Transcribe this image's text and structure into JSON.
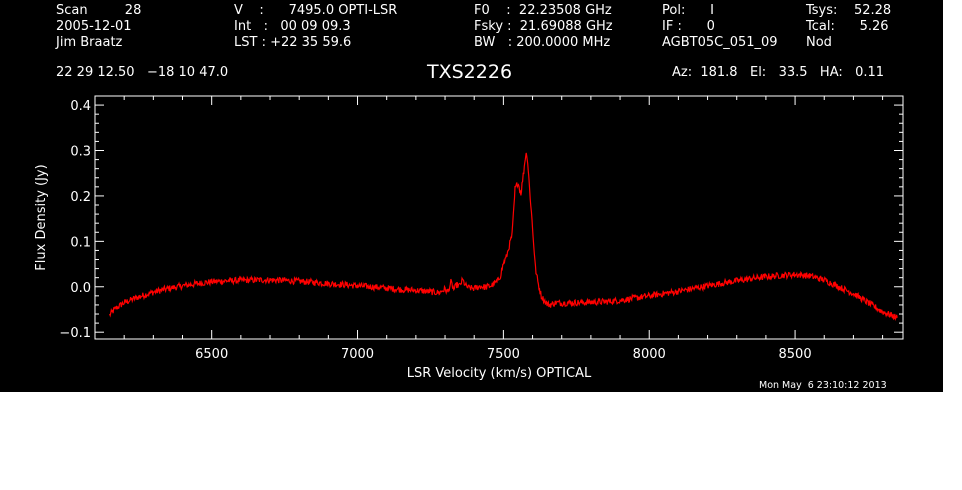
{
  "header": {
    "col1": [
      "Scan         28",
      "2005-12-01",
      "Jim Braatz"
    ],
    "col2": [
      "V    :      7495.0 OPTI-LSR",
      "Int   :   00 09 09.3",
      "LST : +22 35 59.6"
    ],
    "col3": [
      "F0    :  22.23508 GHz",
      "Fsky :  21.69088 GHz",
      "BW   : 200.0000 MHz"
    ],
    "col4": [
      "Pol:      I",
      "IF :      0",
      "AGBT05C_051_09"
    ],
    "col5": [
      "Tsys:    52.28",
      "Tcal:      5.26",
      "Nod"
    ],
    "coords": "22 29 12.50   −18 10 47.0",
    "source": "TXS2226",
    "pointing": "Az:  181.8   El:   33.5   HA:   0.11",
    "timestamp": "Mon May  6 23:10:12 2013"
  },
  "colors": {
    "background": "#000000",
    "axes": "#ffffff",
    "trace": "#ff0000"
  },
  "chart_data": {
    "type": "line",
    "title": "TXS2226",
    "xlabel": "LSR Velocity (km/s) OPTICAL",
    "ylabel": "Flux Density (Jy)",
    "xlim": [
      6100,
      8870
    ],
    "ylim": [
      -0.115,
      0.42
    ],
    "xticks": [
      6500,
      7000,
      7500,
      8000,
      8500
    ],
    "yticks": [
      -0.1,
      0.0,
      0.1,
      0.2,
      0.3,
      0.4
    ],
    "ytick_labels": [
      "−0.1",
      "0.0",
      "0.1",
      "0.2",
      "0.3",
      "0.4"
    ],
    "grid": false,
    "legend": "none",
    "series": [
      {
        "x": [
          6150,
          6170,
          6200,
          6250,
          6300,
          6350,
          6400,
          6450,
          6500,
          6550,
          6600,
          6650,
          6700,
          6750,
          6800,
          6850,
          6900,
          6950,
          7000,
          7050,
          7100,
          7150,
          7200,
          7250,
          7280,
          7300,
          7310,
          7320,
          7330,
          7340,
          7350,
          7360,
          7370,
          7380,
          7400,
          7420,
          7440,
          7460,
          7480,
          7490,
          7500,
          7510,
          7520,
          7530,
          7540,
          7550,
          7560,
          7570,
          7575,
          7580,
          7585,
          7590,
          7600,
          7610,
          7620,
          7630,
          7640,
          7650,
          7660,
          7680,
          7700,
          7750,
          7800,
          7850,
          7900,
          7950,
          8000,
          8050,
          8100,
          8150,
          8200,
          8250,
          8300,
          8350,
          8400,
          8450,
          8500,
          8550,
          8600,
          8650,
          8700,
          8750,
          8800,
          8850
        ],
        "y": [
          -0.062,
          -0.048,
          -0.035,
          -0.022,
          -0.012,
          -0.004,
          0.002,
          0.007,
          0.011,
          0.013,
          0.014,
          0.015,
          0.015,
          0.014,
          0.012,
          0.01,
          0.007,
          0.005,
          0.002,
          0.0,
          -0.003,
          -0.006,
          -0.008,
          -0.011,
          -0.013,
          -0.005,
          -0.012,
          0.01,
          -0.006,
          0.004,
          0.002,
          0.015,
          0.003,
          -0.002,
          -0.004,
          0.001,
          -0.001,
          0.003,
          0.012,
          0.025,
          0.052,
          0.065,
          0.09,
          0.115,
          0.215,
          0.23,
          0.205,
          0.255,
          0.285,
          0.295,
          0.26,
          0.215,
          0.13,
          0.04,
          0.005,
          -0.02,
          -0.03,
          -0.038,
          -0.04,
          -0.035,
          -0.036,
          -0.035,
          -0.034,
          -0.033,
          -0.03,
          -0.025,
          -0.02,
          -0.015,
          -0.01,
          -0.004,
          0.002,
          0.008,
          0.013,
          0.018,
          0.022,
          0.025,
          0.027,
          0.024,
          0.015,
          0.0,
          -0.015,
          -0.035,
          -0.055,
          -0.068
        ]
      }
    ]
  }
}
